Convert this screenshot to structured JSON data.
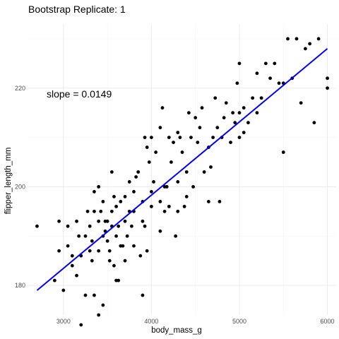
{
  "chart_data": {
    "type": "scatter",
    "title": "Bootstrap Replicate: 1",
    "xlabel": "body_mass_g",
    "ylabel": "flipper_length_mm",
    "xlim": [
      2600,
      6100
    ],
    "ylim": [
      174,
      233
    ],
    "xticks": [
      3000,
      4000,
      5000,
      6000
    ],
    "yticks": [
      180,
      200,
      220
    ],
    "grid": true,
    "point_color": "#000000",
    "line_color": "#0000ff",
    "annotation": {
      "text": "slope = 0.0149",
      "x": 2850,
      "y": 220
    },
    "regression_line": {
      "x": [
        2700,
        6000
      ],
      "y": [
        179,
        228
      ]
    },
    "points": [
      [
        2700,
        192
      ],
      [
        2900,
        181
      ],
      [
        2950,
        187
      ],
      [
        2950,
        193
      ],
      [
        3000,
        179
      ],
      [
        3050,
        192
      ],
      [
        3050,
        188
      ],
      [
        3100,
        184
      ],
      [
        3100,
        186
      ],
      [
        3150,
        193
      ],
      [
        3150,
        182
      ],
      [
        3175,
        190
      ],
      [
        3200,
        172
      ],
      [
        3200,
        186
      ],
      [
        3250,
        178
      ],
      [
        3250,
        190
      ],
      [
        3275,
        195
      ],
      [
        3300,
        187
      ],
      [
        3300,
        192
      ],
      [
        3325,
        189
      ],
      [
        3325,
        185
      ],
      [
        3350,
        199
      ],
      [
        3350,
        195
      ],
      [
        3350,
        178
      ],
      [
        3400,
        200
      ],
      [
        3400,
        193
      ],
      [
        3400,
        187
      ],
      [
        3400,
        174
      ],
      [
        3425,
        195
      ],
      [
        3450,
        176
      ],
      [
        3450,
        190
      ],
      [
        3450,
        197
      ],
      [
        3475,
        193
      ],
      [
        3475,
        191
      ],
      [
        3500,
        193
      ],
      [
        3500,
        189
      ],
      [
        3525,
        187
      ],
      [
        3525,
        185
      ],
      [
        3550,
        203
      ],
      [
        3550,
        195
      ],
      [
        3550,
        192
      ],
      [
        3575,
        198
      ],
      [
        3575,
        184
      ],
      [
        3600,
        196
      ],
      [
        3600,
        190
      ],
      [
        3600,
        181
      ],
      [
        3625,
        181
      ],
      [
        3625,
        192
      ],
      [
        3650,
        197
      ],
      [
        3650,
        188
      ],
      [
        3675,
        188
      ],
      [
        3700,
        198
      ],
      [
        3700,
        193
      ],
      [
        3700,
        185
      ],
      [
        3725,
        190
      ],
      [
        3750,
        201
      ],
      [
        3750,
        195
      ],
      [
        3775,
        192
      ],
      [
        3800,
        195
      ],
      [
        3800,
        188
      ],
      [
        3800,
        199
      ],
      [
        3825,
        202
      ],
      [
        3850,
        203
      ],
      [
        3875,
        186
      ],
      [
        3900,
        178
      ],
      [
        3900,
        193
      ],
      [
        3900,
        197
      ],
      [
        3925,
        192
      ],
      [
        3925,
        210
      ],
      [
        3950,
        208
      ],
      [
        3950,
        187
      ],
      [
        3975,
        205
      ],
      [
        4000,
        210
      ],
      [
        4000,
        199
      ],
      [
        4000,
        196
      ],
      [
        4025,
        201
      ],
      [
        4050,
        207
      ],
      [
        4100,
        191
      ],
      [
        4100,
        212
      ],
      [
        4100,
        197
      ],
      [
        4125,
        216
      ],
      [
        4150,
        195
      ],
      [
        4150,
        200
      ],
      [
        4175,
        200
      ],
      [
        4200,
        210
      ],
      [
        4200,
        196
      ],
      [
        4225,
        205
      ],
      [
        4250,
        209
      ],
      [
        4275,
        190
      ],
      [
        4300,
        211
      ],
      [
        4300,
        201
      ],
      [
        4300,
        195
      ],
      [
        4325,
        210
      ],
      [
        4350,
        207
      ],
      [
        4375,
        196
      ],
      [
        4400,
        203
      ],
      [
        4400,
        198
      ],
      [
        4425,
        215
      ],
      [
        4450,
        210
      ],
      [
        4475,
        200
      ],
      [
        4500,
        214
      ],
      [
        4525,
        209
      ],
      [
        4550,
        212
      ],
      [
        4575,
        216
      ],
      [
        4600,
        203
      ],
      [
        4650,
        197
      ],
      [
        4650,
        208
      ],
      [
        4675,
        204
      ],
      [
        4700,
        210
      ],
      [
        4725,
        218
      ],
      [
        4750,
        212
      ],
      [
        4775,
        197
      ],
      [
        4800,
        210
      ],
      [
        4825,
        214
      ],
      [
        4850,
        217
      ],
      [
        4900,
        209
      ],
      [
        4925,
        215
      ],
      [
        4950,
        213
      ],
      [
        4975,
        221
      ],
      [
        5000,
        210
      ],
      [
        5000,
        215
      ],
      [
        5000,
        225
      ],
      [
        5050,
        211
      ],
      [
        5050,
        216
      ],
      [
        5100,
        213
      ],
      [
        5150,
        218
      ],
      [
        5200,
        215
      ],
      [
        5200,
        223
      ],
      [
        5250,
        218
      ],
      [
        5300,
        225
      ],
      [
        5350,
        222
      ],
      [
        5400,
        225
      ],
      [
        5450,
        221
      ],
      [
        5500,
        221
      ],
      [
        5500,
        207
      ],
      [
        5550,
        230
      ],
      [
        5600,
        222
      ],
      [
        5650,
        230
      ],
      [
        5700,
        217
      ],
      [
        5750,
        228
      ],
      [
        5800,
        229
      ],
      [
        5850,
        213
      ],
      [
        5900,
        230
      ],
      [
        6000,
        220
      ],
      [
        6000,
        222
      ]
    ]
  }
}
